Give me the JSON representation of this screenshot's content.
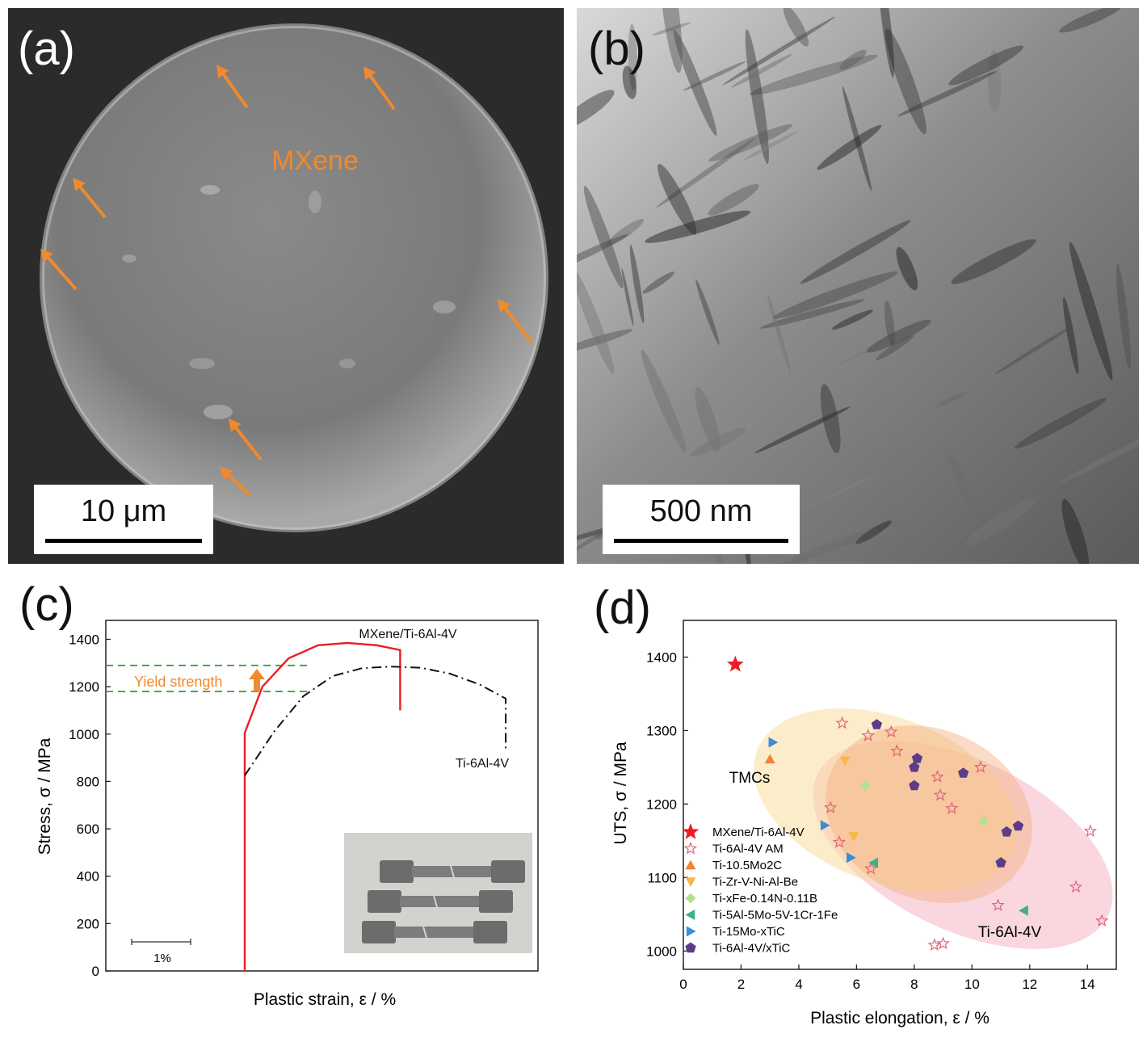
{
  "panel_a": {
    "label": "(a)",
    "annotation": "MXene",
    "scalebar": "10 μm",
    "arrow_color": "#f08a2c"
  },
  "panel_b": {
    "label": "(b)",
    "scalebar": "500 nm"
  },
  "chart_data": [
    {
      "panel": "(c)",
      "type": "line",
      "title": "",
      "xlabel": "Plastic strain, ε / %",
      "ylabel": "Stress, σ / MPa",
      "ylim": [
        0,
        1480
      ],
      "yticks": [
        0,
        200,
        400,
        600,
        800,
        1000,
        1200,
        1400
      ],
      "scale_bar_label": "1%",
      "series": [
        {
          "name": "MXene/Ti-6Al-4V",
          "color": "#ee1c25",
          "style": "solid",
          "points": [
            [
              0,
              0
            ],
            [
              0,
              1005
            ],
            [
              0.6,
              1200
            ],
            [
              1.5,
              1320
            ],
            [
              2.5,
              1375
            ],
            [
              3.5,
              1385
            ],
            [
              4.5,
              1375
            ],
            [
              5.3,
              1355
            ],
            [
              5.3,
              1100
            ]
          ]
        },
        {
          "name": "Ti-6Al-4V",
          "color": "#111111",
          "style": "dashdot",
          "points": [
            [
              0,
              825
            ],
            [
              1.0,
              1010
            ],
            [
              2.0,
              1160
            ],
            [
              3.0,
              1245
            ],
            [
              4.0,
              1278
            ],
            [
              5.0,
              1285
            ],
            [
              6.0,
              1280
            ],
            [
              7.0,
              1255
            ],
            [
              8.0,
              1210
            ],
            [
              8.9,
              1150
            ],
            [
              8.9,
              930
            ]
          ]
        }
      ],
      "yield_strength": {
        "label": "Yield strength",
        "levels": [
          1290,
          1180
        ],
        "line_color": "#2ca02c",
        "text_color": "#f08a2c"
      }
    },
    {
      "panel": "(d)",
      "type": "scatter",
      "title": "",
      "xlabel": "Plastic elongation, ε / %",
      "ylabel": "UTS, σ / MPa",
      "xlim": [
        0,
        15
      ],
      "ylim": [
        975,
        1450
      ],
      "xticks": [
        0,
        2,
        4,
        6,
        8,
        10,
        12,
        14
      ],
      "yticks": [
        1000,
        1100,
        1200,
        1300,
        1400
      ],
      "region_labels": [
        "TMCs",
        "Ti-6Al-4V"
      ],
      "series": [
        {
          "name": "MXene/Ti-6Al-4V",
          "marker": "star",
          "color": "#ee1c25",
          "points": [
            [
              1.8,
              1390
            ]
          ]
        },
        {
          "name": "Ti-6Al-4V AM",
          "marker": "star-open",
          "color": "#e0647a",
          "points": [
            [
              5.5,
              1310
            ],
            [
              6.4,
              1293
            ],
            [
              7.2,
              1298
            ],
            [
              7.4,
              1272
            ],
            [
              8.8,
              1237
            ],
            [
              8.9,
              1212
            ],
            [
              9.3,
              1194
            ],
            [
              10.3,
              1250
            ],
            [
              5.1,
              1195
            ],
            [
              5.4,
              1148
            ],
            [
              6.5,
              1112
            ],
            [
              8.7,
              1008
            ],
            [
              9.0,
              1010
            ],
            [
              10.9,
              1062
            ],
            [
              13.6,
              1087
            ],
            [
              14.1,
              1163
            ],
            [
              14.5,
              1041
            ]
          ]
        },
        {
          "name": "Ti-10.5Mo2C",
          "marker": "triangle-up",
          "color": "#f2813b",
          "points": [
            [
              3.0,
              1261
            ]
          ]
        },
        {
          "name": "Ti-Zr-V-Ni-Al-Be",
          "marker": "triangle-down",
          "color": "#f5b84a",
          "points": [
            [
              5.6,
              1259
            ],
            [
              5.9,
              1156
            ]
          ]
        },
        {
          "name": "Ti-xFe-0.14N-0.11B",
          "marker": "diamond",
          "color": "#b5e08e",
          "points": [
            [
              6.3,
              1225
            ],
            [
              10.4,
              1177
            ]
          ]
        },
        {
          "name": "Ti-5Al-5Mo-5V-1Cr-1Fe",
          "marker": "triangle-left",
          "color": "#3fae8c",
          "points": [
            [
              6.6,
              1120
            ],
            [
              11.8,
              1055
            ]
          ]
        },
        {
          "name": "Ti-15Mo-xTiC",
          "marker": "triangle-right",
          "color": "#3b8ed6",
          "points": [
            [
              3.1,
              1284
            ],
            [
              4.9,
              1171
            ],
            [
              5.8,
              1127
            ]
          ]
        },
        {
          "name": "Ti-6Al-4V/xTiC",
          "marker": "pentagon",
          "color": "#5c3b87",
          "points": [
            [
              6.7,
              1308
            ],
            [
              8.0,
              1250
            ],
            [
              8.1,
              1262
            ],
            [
              8.0,
              1225
            ],
            [
              9.7,
              1242
            ],
            [
              11.0,
              1120
            ],
            [
              11.2,
              1162
            ],
            [
              11.6,
              1170
            ]
          ]
        }
      ]
    }
  ]
}
